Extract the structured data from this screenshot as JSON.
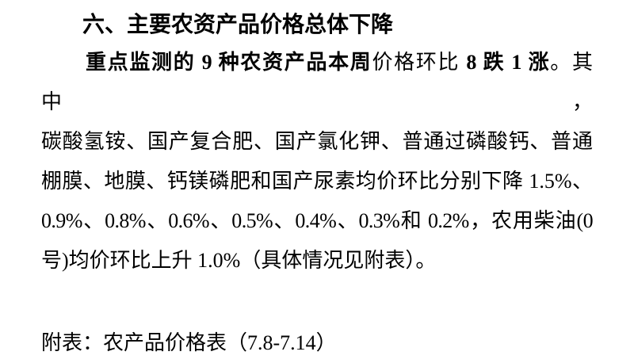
{
  "page": {
    "background_color": "#ffffff",
    "text_color": "#000000"
  },
  "heading": {
    "text": "六、主要农资产品价格总体下降"
  },
  "paragraph": {
    "line1": {
      "seg1_bold": "重点监测的 9 种农资产品本周",
      "seg2_regular": "价格环比",
      "seg3_bold": " 8 跌 1 涨",
      "seg4_regular": "。其中，"
    },
    "line2": "碳酸氢铵、国产复合肥、国产氯化钾、普通过磷酸钙、普通",
    "line3": "棚膜、地膜、钙镁磷肥和国产尿素均价环比分别下降 1.5%、",
    "line4": "0.9%、0.8%、0.6%、0.5%、0.4%、0.3%和 0.2%，农用柴油(0",
    "line5": "号)均价环比上升 1.0%（具体情况见附表）。"
  },
  "appendix": {
    "text": "附表：农产品价格表（7.8-7.14）"
  }
}
